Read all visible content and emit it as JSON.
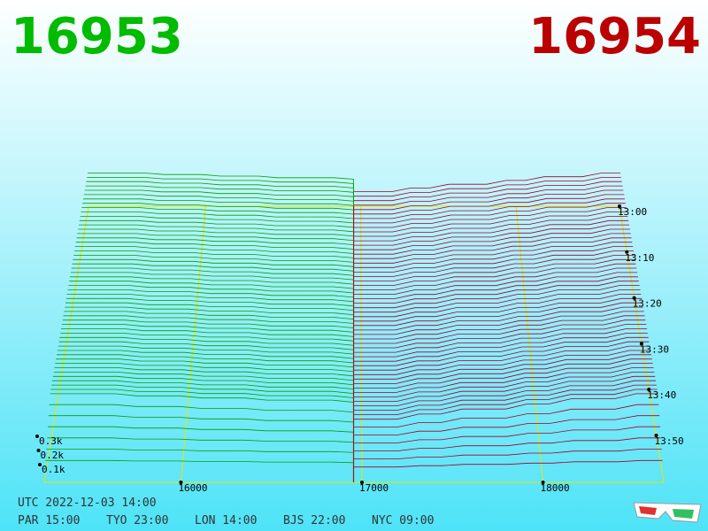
{
  "chart_data": {
    "type": "depth3d",
    "bid": {
      "value": 16953,
      "color": "#00bb00"
    },
    "ask": {
      "value": 16954,
      "color": "#bb0000"
    },
    "xlim": [
      15245,
      18667
    ],
    "xticks": [
      16000,
      17000,
      18000
    ],
    "ylim": [
      0,
      300
    ],
    "yticks": [
      {
        "value": 100,
        "label": "0.1k"
      },
      {
        "value": 200,
        "label": "0.2k"
      },
      {
        "value": 300,
        "label": "0.3k"
      }
    ],
    "time_labels": [
      "13:00",
      "13:10",
      "13:20",
      "13:30",
      "13:40",
      "13:50"
    ],
    "utc": "UTC 2022-12-03 14:00",
    "cities": [
      "PAR 15:00",
      "TYO 23:00",
      "LON 14:00",
      "BJS 22:00",
      "NYC 09:00"
    ]
  }
}
